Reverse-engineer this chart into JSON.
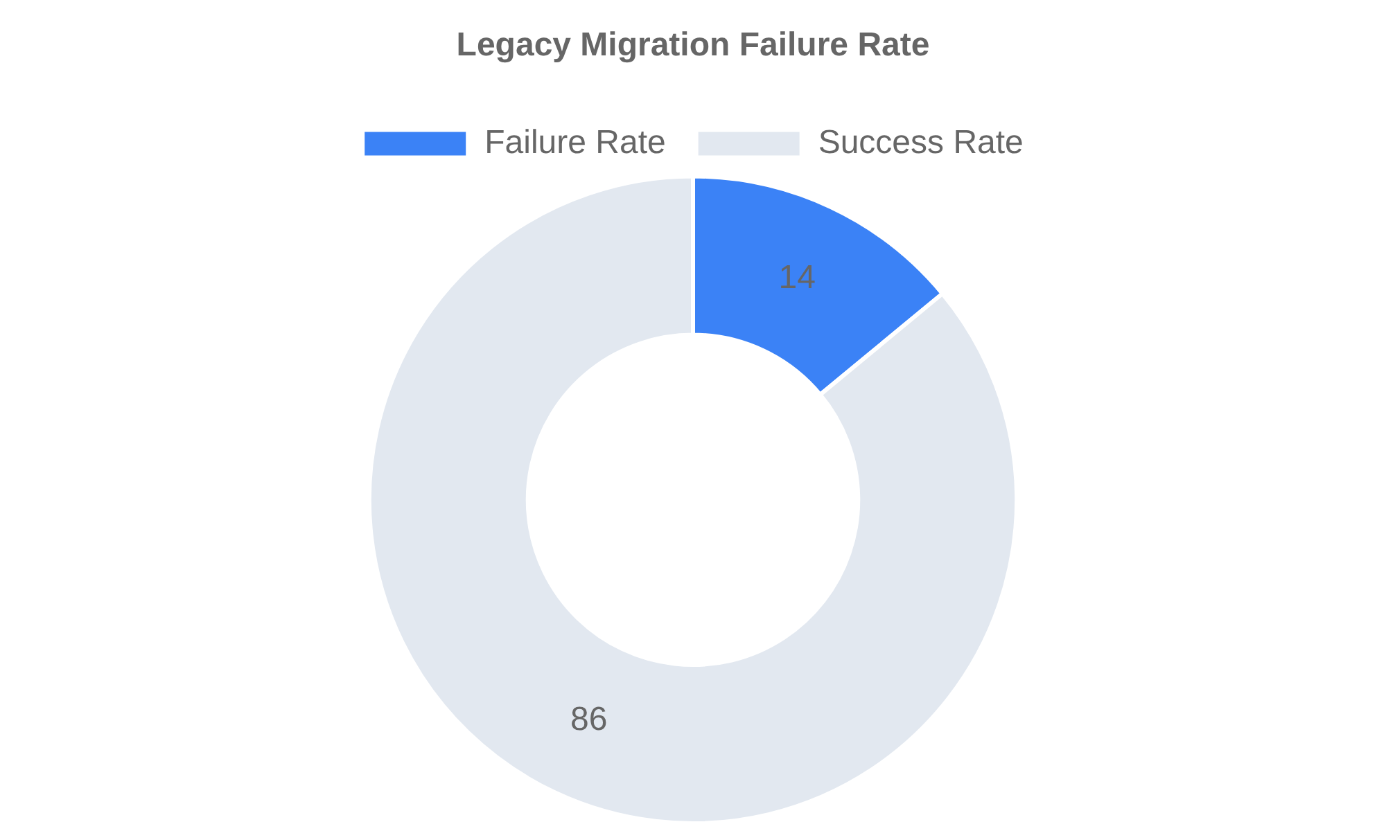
{
  "chart_data": {
    "type": "donut",
    "title": "Legacy Migration Failure Rate",
    "categories": [
      "Failure Rate",
      "Success Rate"
    ],
    "values": [
      14,
      86
    ],
    "colors": [
      "#3b82f6",
      "#e2e8f0"
    ],
    "data_labels": true,
    "legend": "top"
  }
}
